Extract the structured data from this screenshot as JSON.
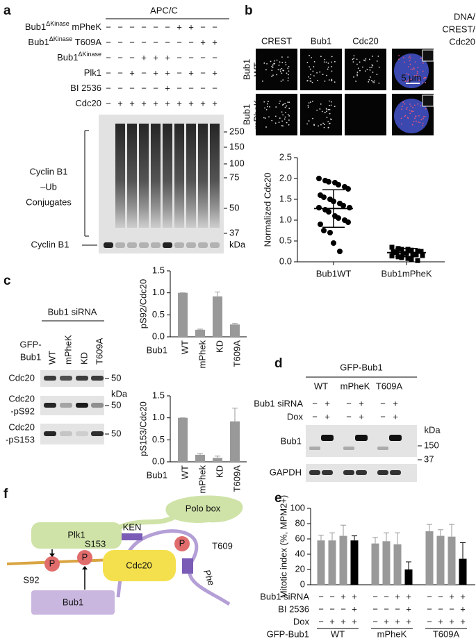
{
  "panel_a": {
    "label": "a",
    "header": "APC/C",
    "rows": [
      {
        "label": "Bub1",
        "sup": "ΔKinase",
        "suffix": " mPheK",
        "signs": [
          "−",
          "−",
          "−",
          "−",
          "−",
          "−",
          "+",
          "+",
          "−",
          "−"
        ]
      },
      {
        "label": "Bub1",
        "sup": "ΔKinase",
        "suffix": " T609A",
        "signs": [
          "−",
          "−",
          "−",
          "−",
          "−",
          "−",
          "−",
          "−",
          "+",
          "+"
        ]
      },
      {
        "label": "Bub1",
        "sup": "ΔKinase",
        "signs": [
          "−",
          "−",
          "−",
          "+",
          "+",
          "+",
          "−",
          "−",
          "−",
          "−"
        ]
      },
      {
        "label": "Plk1",
        "signs": [
          "−",
          "−",
          "+",
          "−",
          "+",
          "+",
          "−",
          "+",
          "−",
          "+"
        ]
      },
      {
        "label": "BI 2536",
        "signs": [
          "−",
          "−",
          "−",
          "−",
          "−",
          "+",
          "−",
          "−",
          "−",
          "−"
        ]
      },
      {
        "label": "Cdc20",
        "signs": [
          "−",
          "+",
          "+",
          "+",
          "+",
          "+",
          "+",
          "+",
          "+",
          "+"
        ]
      }
    ],
    "markers": [
      250,
      150,
      100,
      75,
      50,
      37
    ],
    "unit": "kDa",
    "bracket_label": [
      "Cyclin B1",
      "–Ub",
      "Conjugates"
    ],
    "band_label": "Cyclin B1"
  },
  "panel_b": {
    "label": "b",
    "columns": [
      "CREST",
      "Bub1",
      "Cdc20"
    ],
    "merge": [
      {
        "text": "DNA/",
        "color": "#3552d4"
      },
      {
        "text": "CREST/",
        "color": "#d8322b"
      },
      {
        "text": "Cdc20",
        "color": "#62b83a"
      }
    ],
    "rows": [
      [
        "Bub1",
        "WT"
      ],
      [
        "Bub1",
        "mPheK"
      ]
    ],
    "scale_bar": "5 μm"
  },
  "panel_c": {
    "label": "c",
    "header": "Bub1 siRNA",
    "row_title": [
      "GFP-",
      "Bub1"
    ],
    "lanes": [
      "WT",
      "mPheK",
      "KD",
      "T609A"
    ],
    "rows": [
      [
        "Cdc20"
      ],
      [
        "Cdc20",
        "-pS92"
      ],
      [
        "Cdc20",
        "-pS153"
      ]
    ],
    "markers": [
      50,
      50,
      50
    ],
    "unit": "kDa"
  },
  "panel_d": {
    "label": "d",
    "header": "GFP-Bub1",
    "groups": [
      "WT",
      "mPheK",
      "T609A"
    ],
    "conditions": [
      {
        "label": "Bub1 siRNA",
        "signs": [
          "−",
          "+",
          "−",
          "+",
          "−",
          "+"
        ]
      },
      {
        "label": "Dox",
        "signs": [
          "−",
          "+",
          "−",
          "+",
          "−",
          "+"
        ]
      }
    ],
    "rows": [
      "Bub1",
      "GAPDH"
    ],
    "unit": "kDa",
    "markers": [
      150,
      37
    ]
  },
  "panel_f": {
    "label": "f",
    "plk1": "Plk1",
    "polo_box": "Polo box",
    "ken": "KEN",
    "phospho": [
      "P",
      "P",
      "P"
    ],
    "sites": [
      "S153",
      "S92",
      "T609"
    ],
    "cdc20": "Cdc20",
    "phe": "Phe",
    "bub1": "Bub1"
  },
  "chart_data": [
    {
      "type": "scatter",
      "ylabel": "Normalized Cdc20",
      "categories": [
        "Bub1WT",
        "Bub1mPheK"
      ],
      "markers": [
        "circle",
        "square"
      ],
      "color": "#000",
      "points": [
        [
          2.0,
          1.95,
          1.92,
          1.9,
          1.85,
          1.8,
          1.75,
          1.6,
          1.55,
          1.5,
          1.45,
          1.4,
          1.35,
          1.3,
          1.3,
          1.25,
          1.2,
          1.1,
          1.05,
          1.0,
          0.95,
          0.9,
          0.75,
          0.7,
          0.45,
          0.25
        ],
        [
          0.35,
          0.32,
          0.3,
          0.3,
          0.28,
          0.26,
          0.25,
          0.24,
          0.22,
          0.2,
          0.2,
          0.18,
          0.17,
          0.15,
          0.14,
          0.12,
          0.1,
          0.08,
          0.05,
          0.03
        ]
      ],
      "mean": [
        1.28,
        0.22
      ],
      "sd": [
        0.45,
        0.1
      ],
      "ylim": [
        0,
        2.5
      ],
      "yticks": [
        {
          "value": 0,
          "label": "0.0"
        },
        0.5,
        {
          "value": 1,
          "label": "1.0"
        },
        {
          "value": 1.5,
          "label": "1.5"
        },
        {
          "value": 2,
          "label": "2.0"
        },
        {
          "value": 2.5,
          "label": "2.5"
        }
      ]
    },
    {
      "type": "bar",
      "ylabel": "pS92/Cdc20",
      "xlabel": "Bub1",
      "categories": [
        "WT",
        "mPhek",
        "KD",
        "T609A"
      ],
      "values": [
        1.0,
        0.16,
        0.92,
        0.28
      ],
      "errors": [
        0,
        0.015,
        0.1,
        0.025
      ],
      "color": "#999",
      "ylim": [
        0,
        1.5
      ],
      "yticks": [
        {
          "value": 0,
          "label": "0.0"
        },
        0.5,
        {
          "value": 1,
          "label": "1.0"
        },
        {
          "value": 1.5,
          "label": "1.5"
        }
      ]
    },
    {
      "type": "bar",
      "ylabel": "pS153/Cdc20",
      "xlabel": "Bub1",
      "categories": [
        "WT",
        "mPhek",
        "KD",
        "T609A"
      ],
      "values": [
        1.0,
        0.16,
        0.09,
        0.92
      ],
      "errors": [
        0,
        0.03,
        0.04,
        0.3
      ],
      "color": "#999",
      "ylim": [
        0,
        1.5
      ],
      "yticks": [
        {
          "value": 0,
          "label": "0.0"
        },
        0.5,
        {
          "value": 1,
          "label": "1.0"
        },
        {
          "value": 1.5,
          "label": "1.5"
        }
      ]
    },
    {
      "type": "bar",
      "panel_label": "e",
      "ylabel": "Mitotic index (%, MPM2+)",
      "values": [
        58,
        58,
        64,
        58,
        54,
        57,
        53,
        20,
        70,
        64,
        63,
        34
      ],
      "errors": [
        7,
        10,
        14,
        6,
        8,
        11,
        15,
        10,
        9,
        8,
        16,
        21
      ],
      "colors": [
        "#999",
        "#999",
        "#999",
        "#000",
        "#999",
        "#999",
        "#999",
        "#000",
        "#999",
        "#999",
        "#999",
        "#000"
      ],
      "conditions": [
        {
          "label": "Bub1 siRNA",
          "signs": [
            "−",
            "−",
            "+",
            "+",
            "−",
            "−",
            "+",
            "+",
            "−",
            "−",
            "+",
            "+"
          ]
        },
        {
          "label": "BI 2536",
          "signs": [
            "−",
            "−",
            "−",
            "+",
            "−",
            "−",
            "−",
            "+",
            "−",
            "−",
            "−",
            "+"
          ]
        },
        {
          "label": "Dox",
          "signs": [
            "−",
            "+",
            "+",
            "+",
            "−",
            "+",
            "+",
            "+",
            "−",
            "+",
            "+",
            "+"
          ]
        }
      ],
      "group_label": "GFP-Bub1",
      "groups": [
        "WT",
        "mPheK",
        "T609A"
      ],
      "ylim": [
        0,
        100
      ],
      "yticks": [
        0,
        20,
        40,
        60,
        80,
        100
      ]
    }
  ]
}
